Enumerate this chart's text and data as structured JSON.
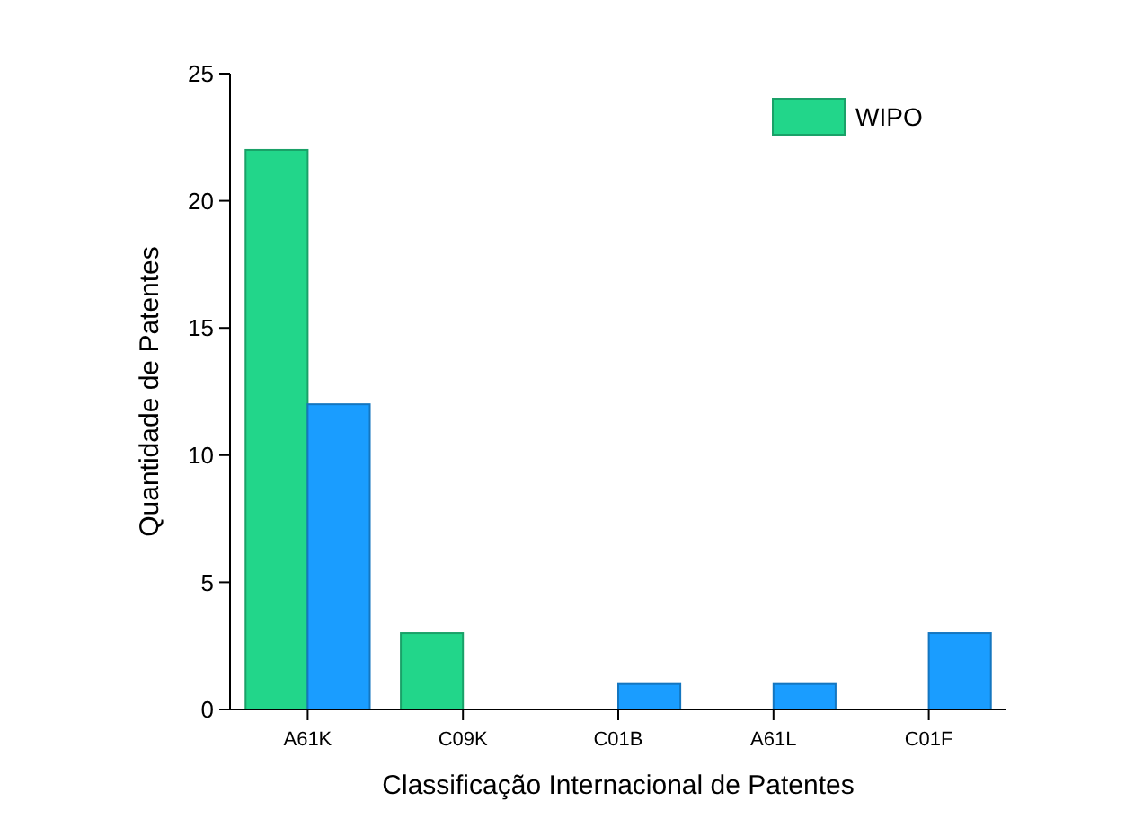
{
  "chart_data": {
    "type": "bar",
    "xlabel": "Classificação Internacional de Patentes",
    "ylabel": "Quantidade de Patentes",
    "categories": [
      "A61K",
      "C09K",
      "C01B",
      "A61L",
      "C01F"
    ],
    "series": [
      {
        "name": "WIPO",
        "color": "#22d68a",
        "values": [
          22,
          3,
          0,
          0,
          0
        ]
      },
      {
        "color": "#1a9dff",
        "values": [
          12,
          0,
          1,
          1,
          3
        ]
      }
    ],
    "ylim": [
      0,
      25
    ],
    "yticks": [
      0,
      5,
      10,
      15,
      20,
      25
    ],
    "grid": false,
    "legend": "top right"
  }
}
